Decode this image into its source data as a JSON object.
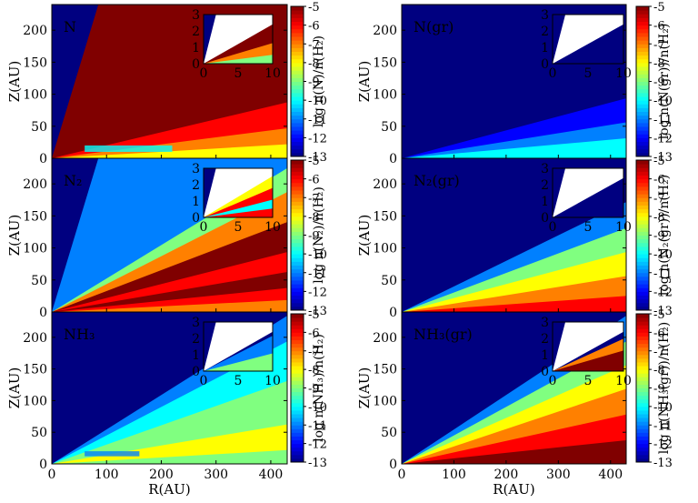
{
  "chart_data": [
    {
      "type": "heatmap",
      "panel_label": "N",
      "cbar_label": "log n(N)/n(H₂)",
      "xlabel": "",
      "ylabel": "Z(AU)",
      "xlim": [
        0,
        430
      ],
      "ylim": [
        0,
        240
      ],
      "inset_xlim": [
        0,
        10
      ],
      "inset_ylim": [
        0,
        3
      ],
      "clim": [
        -13,
        -5
      ],
      "layers": {
        "background": -13,
        "main": -5,
        "bands": [
          {
            "value": -6,
            "level": 0.28
          },
          {
            "value": -7,
            "level": 0.15
          },
          {
            "value": -8,
            "level": 0.07
          }
        ],
        "spot": {
          "value": -10,
          "r": [
            60,
            220
          ],
          "z": [
            10,
            20
          ]
        }
      },
      "inset_layers": {
        "background": -13,
        "main": -5,
        "bands": [
          {
            "value": -7,
            "level": 0.35
          },
          {
            "value": -9,
            "level": 0.15
          }
        ]
      }
    },
    {
      "type": "heatmap",
      "panel_label": "N(gr)",
      "cbar_label": "log n(N(gr))/n(H₂)",
      "xlabel": "",
      "ylabel": "Z(AU)",
      "xlim": [
        0,
        430
      ],
      "ylim": [
        0,
        240
      ],
      "inset_xlim": [
        0,
        10
      ],
      "inset_ylim": [
        0,
        3
      ],
      "clim": [
        -13,
        -5
      ],
      "layers": {
        "background": -13,
        "main": -13,
        "bands": [
          {
            "value": -12,
            "level": 0.3
          },
          {
            "value": -11,
            "level": 0.18
          },
          {
            "value": -10,
            "level": 0.1
          }
        ],
        "spot": null
      },
      "inset_layers": {
        "background": -13,
        "main": -13,
        "bands": []
      }
    },
    {
      "type": "heatmap",
      "panel_label": "N₂",
      "cbar_label": "log n(N₂)/n(H₂)",
      "xlabel": "",
      "ylabel": "Z(AU)",
      "xlim": [
        0,
        430
      ],
      "ylim": [
        0,
        240
      ],
      "inset_xlim": [
        0,
        10
      ],
      "inset_ylim": [
        0,
        3
      ],
      "clim": [
        -13,
        -5
      ],
      "layers": {
        "background": -13,
        "main": -11,
        "bands": [
          {
            "value": -9,
            "level": 0.72
          },
          {
            "value": -7,
            "level": 0.6
          },
          {
            "value": -5,
            "level": 0.45
          },
          {
            "value": -6,
            "level": 0.3
          },
          {
            "value": -5,
            "level": 0.2
          },
          {
            "value": -6,
            "level": 0.12
          },
          {
            "value": -7,
            "level": 0.06
          }
        ],
        "spot": null
      },
      "inset_layers": {
        "background": -13,
        "main": -11,
        "bands": [
          {
            "value": -8,
            "level": 0.7
          },
          {
            "value": -6,
            "level": 0.5
          },
          {
            "value": -10,
            "level": 0.3
          },
          {
            "value": -6,
            "level": 0.15
          }
        ]
      }
    },
    {
      "type": "heatmap",
      "panel_label": "N₂(gr)",
      "cbar_label": "log n(N₂(gr))/n(H₂)",
      "xlabel": "",
      "ylabel": "Z(AU)",
      "xlim": [
        0,
        430
      ],
      "ylim": [
        0,
        240
      ],
      "inset_xlim": [
        0,
        10
      ],
      "inset_ylim": [
        0,
        3
      ],
      "clim": [
        -13,
        -5
      ],
      "layers": {
        "background": -13,
        "main": -13,
        "bands": [
          {
            "value": -11,
            "level": 0.55
          },
          {
            "value": -9,
            "level": 0.42
          },
          {
            "value": -8,
            "level": 0.3
          },
          {
            "value": -7,
            "level": 0.18
          },
          {
            "value": -6,
            "level": 0.08
          }
        ],
        "spot": null
      },
      "inset_layers": {
        "background": -13,
        "main": -13,
        "bands": []
      }
    },
    {
      "type": "heatmap",
      "panel_label": "NH₃",
      "cbar_label": "log n(NH₃)/n(H₂)",
      "xlabel": "R(AU)",
      "ylabel": "Z(AU)",
      "xlim": [
        0,
        430
      ],
      "ylim": [
        0,
        240
      ],
      "inset_xlim": [
        0,
        10
      ],
      "inset_ylim": [
        0,
        3
      ],
      "clim": [
        -13,
        -5
      ],
      "layers": {
        "background": -13,
        "main": -13,
        "bands": [
          {
            "value": -11,
            "level": 0.75
          },
          {
            "value": -10,
            "level": 0.62
          },
          {
            "value": -9,
            "level": 0.42
          },
          {
            "value": -8,
            "level": 0.2
          },
          {
            "value": -9,
            "level": 0.07
          }
        ],
        "spot": {
          "value": -11,
          "r": [
            60,
            160
          ],
          "z": [
            12,
            20
          ]
        }
      },
      "inset_layers": {
        "background": -13,
        "main": -13,
        "bands": [
          {
            "value": -11,
            "level": 0.6
          },
          {
            "value": -9,
            "level": 0.3
          }
        ]
      }
    },
    {
      "type": "heatmap",
      "panel_label": "NH₃(gr)",
      "cbar_label": "log n(NH₃(gr))/n(H₂)",
      "xlabel": "R(AU)",
      "ylabel": "Z(AU)",
      "xlim": [
        0,
        430
      ],
      "ylim": [
        0,
        240
      ],
      "inset_xlim": [
        0,
        10
      ],
      "inset_ylim": [
        0,
        3
      ],
      "clim": [
        -13,
        -5
      ],
      "layers": {
        "background": -13,
        "main": -13,
        "bands": [
          {
            "value": -11,
            "level": 0.75
          },
          {
            "value": -9,
            "level": 0.62
          },
          {
            "value": -8,
            "level": 0.5
          },
          {
            "value": -7,
            "level": 0.38
          },
          {
            "value": -6,
            "level": 0.25
          },
          {
            "value": -5,
            "level": 0.12
          }
        ],
        "spot": null
      },
      "inset_layers": {
        "background": -13,
        "main": -13,
        "bands": [
          {
            "value": -7,
            "level": 0.55
          },
          {
            "value": -5,
            "level": 0.35
          }
        ]
      }
    }
  ],
  "axis_ticks": {
    "x": [
      "0",
      "100",
      "200",
      "300",
      "400"
    ],
    "y": [
      "0",
      "50",
      "100",
      "150",
      "200"
    ],
    "inset_x": [
      "0",
      "5",
      "10"
    ],
    "inset_y": [
      "0",
      "1",
      "2",
      "3"
    ],
    "cbar": [
      "-5",
      "-6",
      "-7",
      "-8",
      "-9",
      "-10",
      "-11",
      "-12",
      "-13"
    ]
  }
}
